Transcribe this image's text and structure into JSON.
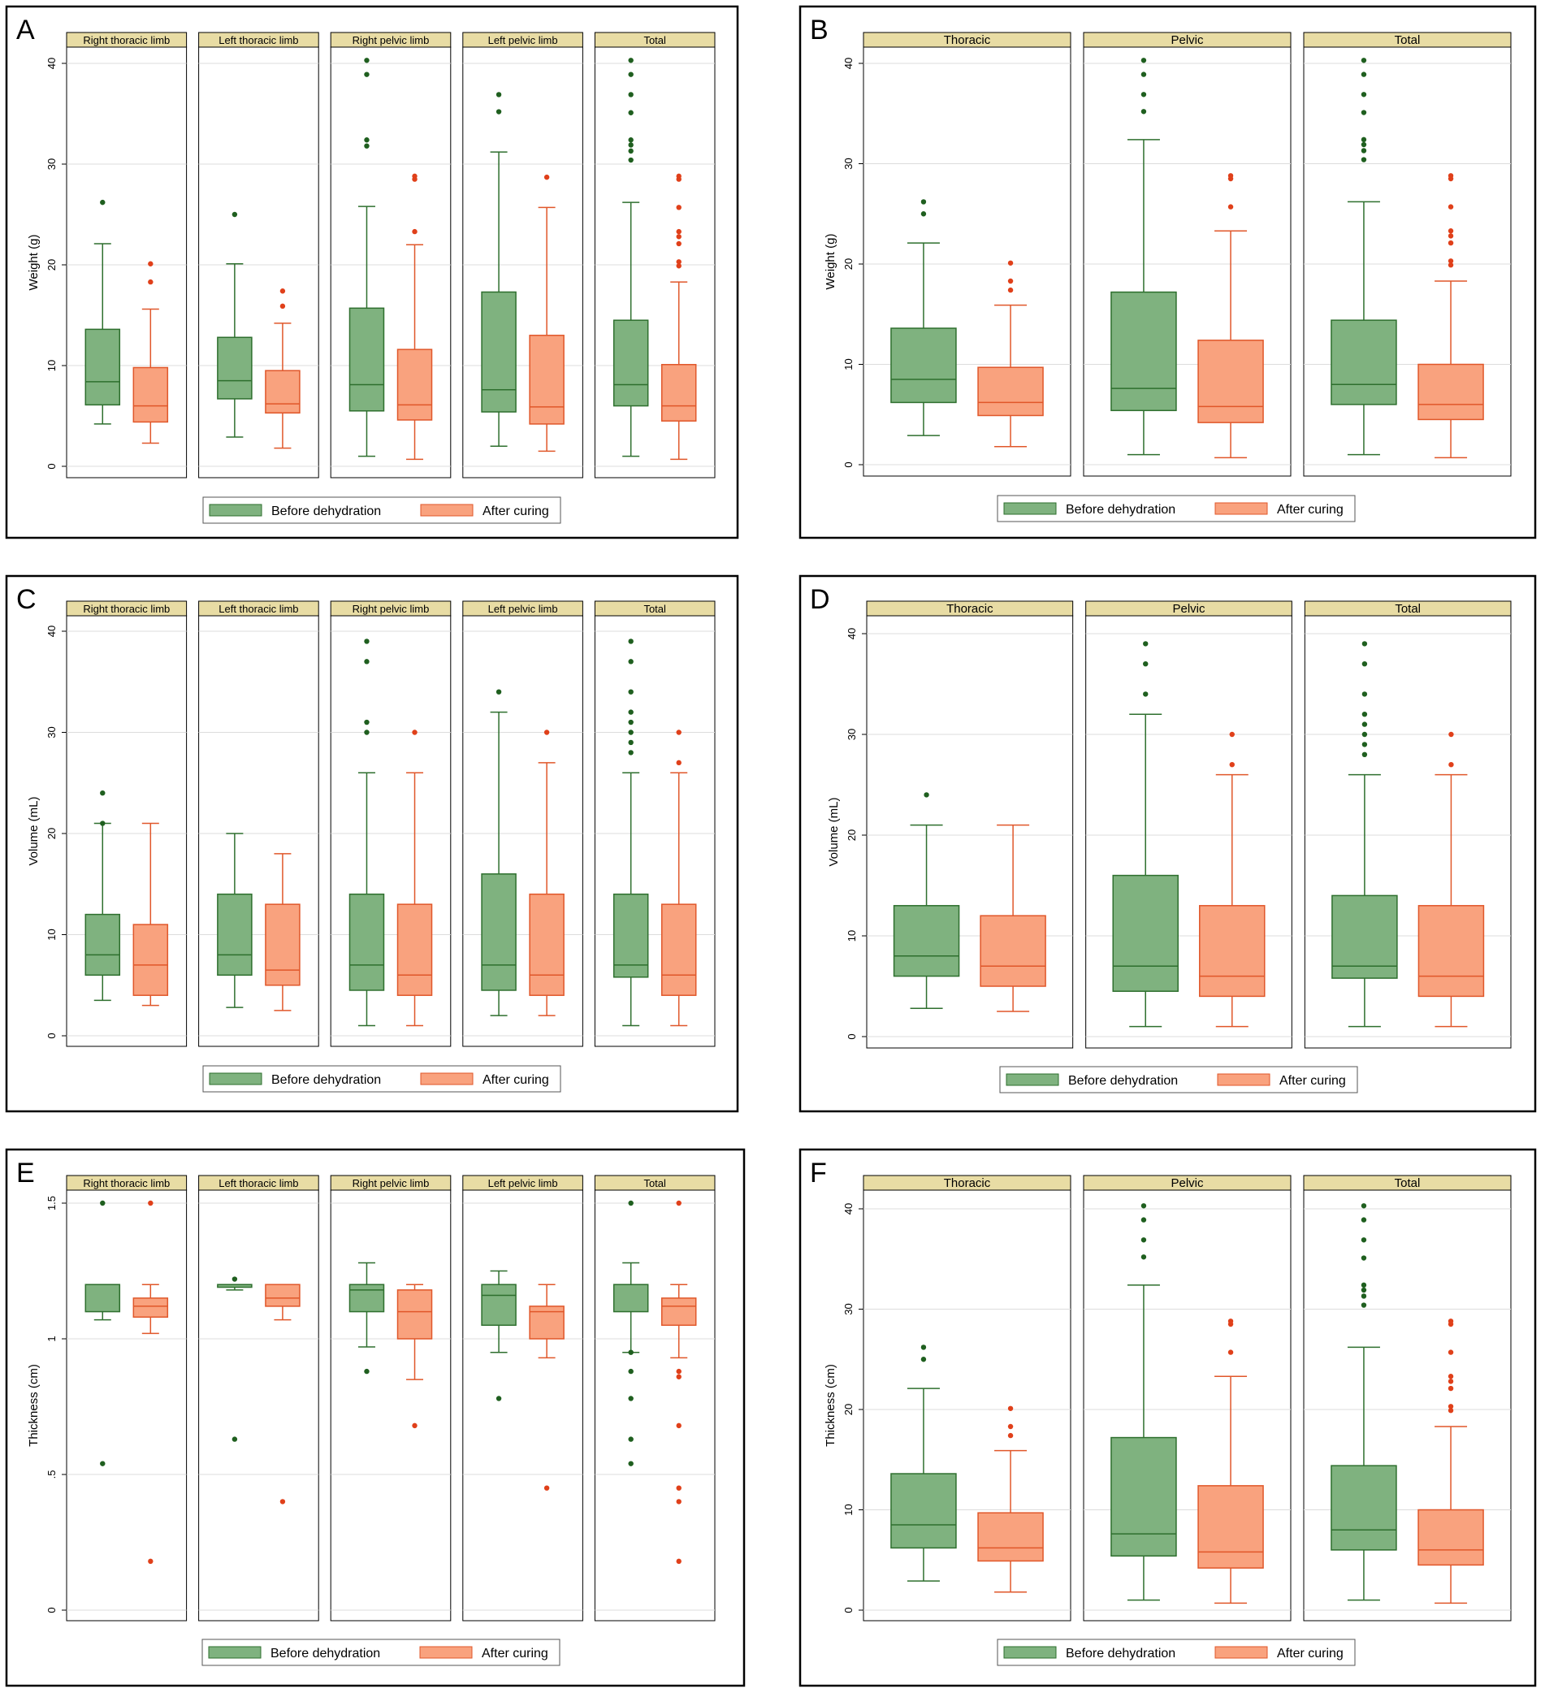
{
  "colors": {
    "before_fill": "#7fb27f",
    "before_stroke": "#2e6f2e",
    "before_outlier": "#1f5f1f",
    "after_fill": "#f9a27e",
    "after_stroke": "#e0572a",
    "after_outlier": "#e0401a",
    "strip": "#e8dca4",
    "grid": "#dcdcdc"
  },
  "legend": {
    "before": "Before dehydration",
    "after": "After curing"
  },
  "chart_data": [
    {
      "id": "A",
      "type": "box",
      "title": "A",
      "ylabel": "Weight (g)",
      "ylim": [
        0,
        40
      ],
      "yticks": [
        0,
        10,
        20,
        30,
        40
      ],
      "ytick_labels": [
        "0",
        "10",
        "20",
        "30",
        "40"
      ],
      "panels": [
        {
          "label": "Right thoracic limb",
          "before": {
            "min": 4.2,
            "q1": 6.1,
            "median": 8.4,
            "q3": 13.6,
            "max": 22.1,
            "outliers": [
              26.2
            ]
          },
          "after": {
            "min": 2.3,
            "q1": 4.4,
            "median": 6.0,
            "q3": 9.8,
            "max": 15.6,
            "outliers": [
              18.3,
              20.1
            ]
          }
        },
        {
          "label": "Left thoracic limb",
          "before": {
            "min": 2.9,
            "q1": 6.7,
            "median": 8.5,
            "q3": 12.8,
            "max": 20.1,
            "outliers": [
              25.0
            ]
          },
          "after": {
            "min": 1.8,
            "q1": 5.3,
            "median": 6.2,
            "q3": 9.5,
            "max": 14.2,
            "outliers": [
              15.9,
              17.4
            ]
          }
        },
        {
          "label": "Right pelvic limb",
          "before": {
            "min": 1.0,
            "q1": 5.5,
            "median": 8.1,
            "q3": 15.7,
            "max": 25.8,
            "outliers": [
              31.8,
              32.4,
              38.9,
              40.3
            ]
          },
          "after": {
            "min": 0.7,
            "q1": 4.6,
            "median": 6.1,
            "q3": 11.6,
            "max": 22.0,
            "outliers": [
              23.3,
              28.5,
              28.8
            ]
          }
        },
        {
          "label": "Left pelvic limb",
          "before": {
            "min": 2.0,
            "q1": 5.4,
            "median": 7.6,
            "q3": 17.3,
            "max": 31.2,
            "outliers": [
              35.2,
              36.9
            ]
          },
          "after": {
            "min": 1.5,
            "q1": 4.2,
            "median": 5.9,
            "q3": 13.0,
            "max": 25.7,
            "outliers": [
              28.7
            ]
          }
        },
        {
          "label": "Total",
          "before": {
            "min": 1.0,
            "q1": 6.0,
            "median": 8.1,
            "q3": 14.5,
            "max": 26.2,
            "outliers": [
              30.4,
              31.3,
              31.9,
              32.4,
              35.1,
              36.9,
              38.9,
              40.3
            ]
          },
          "after": {
            "min": 0.7,
            "q1": 4.5,
            "median": 6.0,
            "q3": 10.1,
            "max": 18.3,
            "outliers": [
              19.9,
              20.3,
              22.1,
              22.8,
              23.3,
              25.7,
              28.5,
              28.8
            ]
          }
        }
      ]
    },
    {
      "id": "B",
      "type": "box",
      "title": "B",
      "ylabel": "Weight (g)",
      "ylim": [
        0,
        40
      ],
      "yticks": [
        0,
        10,
        20,
        30,
        40
      ],
      "ytick_labels": [
        "0",
        "10",
        "20",
        "30",
        "40"
      ],
      "panels": [
        {
          "label": "Thoracic",
          "before": {
            "min": 2.9,
            "q1": 6.2,
            "median": 8.5,
            "q3": 13.6,
            "max": 22.1,
            "outliers": [
              25.0,
              26.2
            ]
          },
          "after": {
            "min": 1.8,
            "q1": 4.9,
            "median": 6.2,
            "q3": 9.7,
            "max": 15.9,
            "outliers": [
              17.4,
              18.3,
              20.1
            ]
          }
        },
        {
          "label": "Pelvic",
          "before": {
            "min": 1.0,
            "q1": 5.4,
            "median": 7.6,
            "q3": 17.2,
            "max": 32.4,
            "outliers": [
              35.2,
              36.9,
              38.9,
              40.3
            ]
          },
          "after": {
            "min": 0.7,
            "q1": 4.2,
            "median": 5.8,
            "q3": 12.4,
            "max": 23.3,
            "outliers": [
              25.7,
              28.5,
              28.8
            ]
          }
        },
        {
          "label": "Total",
          "before": {
            "min": 1.0,
            "q1": 6.0,
            "median": 8.0,
            "q3": 14.4,
            "max": 26.2,
            "outliers": [
              30.4,
              31.3,
              31.9,
              32.4,
              35.1,
              36.9,
              38.9,
              40.3
            ]
          },
          "after": {
            "min": 0.7,
            "q1": 4.5,
            "median": 6.0,
            "q3": 10.0,
            "max": 18.3,
            "outliers": [
              19.9,
              20.3,
              22.1,
              22.8,
              23.3,
              25.7,
              28.5,
              28.8
            ]
          }
        }
      ]
    },
    {
      "id": "C",
      "type": "box",
      "title": "C",
      "ylabel": "Volume (mL)",
      "ylim": [
        0,
        40
      ],
      "yticks": [
        0,
        10,
        20,
        30,
        40
      ],
      "ytick_labels": [
        "0",
        "10",
        "20",
        "30",
        "40"
      ],
      "panels": [
        {
          "label": "Right thoracic limb",
          "before": {
            "min": 3.5,
            "q1": 6.0,
            "median": 8.0,
            "q3": 12.0,
            "max": 21.0,
            "outliers": [
              21.0,
              24.0
            ]
          },
          "after": {
            "min": 3.0,
            "q1": 4.0,
            "median": 7.0,
            "q3": 11.0,
            "max": 21.0,
            "outliers": []
          }
        },
        {
          "label": "Left thoracic limb",
          "before": {
            "min": 2.8,
            "q1": 6.0,
            "median": 8.0,
            "q3": 14.0,
            "max": 20.0,
            "outliers": []
          },
          "after": {
            "min": 2.5,
            "q1": 5.0,
            "median": 6.5,
            "q3": 13.0,
            "max": 18.0,
            "outliers": []
          }
        },
        {
          "label": "Right pelvic limb",
          "before": {
            "min": 1.0,
            "q1": 4.5,
            "median": 7.0,
            "q3": 14.0,
            "max": 26.0,
            "outliers": [
              30.0,
              31.0,
              37.0,
              39.0
            ]
          },
          "after": {
            "min": 1.0,
            "q1": 4.0,
            "median": 6.0,
            "q3": 13.0,
            "max": 26.0,
            "outliers": [
              30.0
            ]
          }
        },
        {
          "label": "Left pelvic limb",
          "before": {
            "min": 2.0,
            "q1": 4.5,
            "median": 7.0,
            "q3": 16.0,
            "max": 32.0,
            "outliers": [
              34.0
            ]
          },
          "after": {
            "min": 2.0,
            "q1": 4.0,
            "median": 6.0,
            "q3": 14.0,
            "max": 27.0,
            "outliers": [
              30.0
            ]
          }
        },
        {
          "label": "Total",
          "before": {
            "min": 1.0,
            "q1": 5.8,
            "median": 7.0,
            "q3": 14.0,
            "max": 26.0,
            "outliers": [
              28.0,
              29.0,
              30.0,
              31.0,
              32.0,
              34.0,
              37.0,
              39.0
            ]
          },
          "after": {
            "min": 1.0,
            "q1": 4.0,
            "median": 6.0,
            "q3": 13.0,
            "max": 26.0,
            "outliers": [
              27.0,
              30.0
            ]
          }
        }
      ]
    },
    {
      "id": "D",
      "type": "box",
      "title": "D",
      "ylabel": "Volume (mL)",
      "ylim": [
        0,
        40
      ],
      "yticks": [
        0,
        10,
        20,
        30,
        40
      ],
      "ytick_labels": [
        "0",
        "10",
        "20",
        "30",
        "40"
      ],
      "panels": [
        {
          "label": "Thoracic",
          "before": {
            "min": 2.8,
            "q1": 6.0,
            "median": 8.0,
            "q3": 13.0,
            "max": 21.0,
            "outliers": [
              24.0
            ]
          },
          "after": {
            "min": 2.5,
            "q1": 5.0,
            "median": 7.0,
            "q3": 12.0,
            "max": 21.0,
            "outliers": []
          }
        },
        {
          "label": "Pelvic",
          "before": {
            "min": 1.0,
            "q1": 4.5,
            "median": 7.0,
            "q3": 16.0,
            "max": 32.0,
            "outliers": [
              34.0,
              37.0,
              39.0
            ]
          },
          "after": {
            "min": 1.0,
            "q1": 4.0,
            "median": 6.0,
            "q3": 13.0,
            "max": 26.0,
            "outliers": [
              27.0,
              30.0
            ]
          }
        },
        {
          "label": "Total",
          "before": {
            "min": 1.0,
            "q1": 5.8,
            "median": 7.0,
            "q3": 14.0,
            "max": 26.0,
            "outliers": [
              28.0,
              29.0,
              30.0,
              31.0,
              32.0,
              34.0,
              37.0,
              39.0
            ]
          },
          "after": {
            "min": 1.0,
            "q1": 4.0,
            "median": 6.0,
            "q3": 13.0,
            "max": 26.0,
            "outliers": [
              27.0,
              30.0
            ]
          }
        }
      ]
    },
    {
      "id": "E",
      "type": "box",
      "title": "E",
      "ylabel": "Thickness (cm)",
      "ylim": [
        0,
        1.5
      ],
      "yticks": [
        0,
        0.5,
        1,
        1.5
      ],
      "ytick_labels": [
        "0",
        ".5",
        "1",
        "1.5"
      ],
      "panels": [
        {
          "label": "Right thoracic limb",
          "before": {
            "min": 1.07,
            "q1": 1.1,
            "median": 1.2,
            "q3": 1.2,
            "max": 1.2,
            "outliers": [
              1.5,
              0.54
            ]
          },
          "after": {
            "min": 1.02,
            "q1": 1.08,
            "median": 1.12,
            "q3": 1.15,
            "max": 1.2,
            "outliers": [
              1.5,
              0.18
            ]
          }
        },
        {
          "label": "Left thoracic limb",
          "before": {
            "min": 1.18,
            "q1": 1.19,
            "median": 1.2,
            "q3": 1.2,
            "max": 1.2,
            "outliers": [
              1.22,
              0.63
            ]
          },
          "after": {
            "min": 1.07,
            "q1": 1.12,
            "median": 1.15,
            "q3": 1.2,
            "max": 1.2,
            "outliers": [
              0.4
            ]
          }
        },
        {
          "label": "Right pelvic limb",
          "before": {
            "min": 0.97,
            "q1": 1.1,
            "median": 1.18,
            "q3": 1.2,
            "max": 1.28,
            "outliers": [
              0.88
            ]
          },
          "after": {
            "min": 0.85,
            "q1": 1.0,
            "median": 1.1,
            "q3": 1.18,
            "max": 1.2,
            "outliers": [
              0.68
            ]
          }
        },
        {
          "label": "Left pelvic limb",
          "before": {
            "min": 0.95,
            "q1": 1.05,
            "median": 1.16,
            "q3": 1.2,
            "max": 1.25,
            "outliers": [
              0.78
            ]
          },
          "after": {
            "min": 0.93,
            "q1": 1.0,
            "median": 1.1,
            "q3": 1.12,
            "max": 1.2,
            "outliers": [
              0.45
            ]
          }
        },
        {
          "label": "Total",
          "before": {
            "min": 0.95,
            "q1": 1.1,
            "median": 1.2,
            "q3": 1.2,
            "max": 1.28,
            "outliers": [
              1.5,
              0.95,
              0.88,
              0.78,
              0.63,
              0.54
            ]
          },
          "after": {
            "min": 0.93,
            "q1": 1.05,
            "median": 1.12,
            "q3": 1.15,
            "max": 1.2,
            "outliers": [
              1.5,
              0.88,
              0.86,
              0.68,
              0.45,
              0.4,
              0.18
            ]
          }
        }
      ]
    },
    {
      "id": "F",
      "type": "box",
      "title": "F",
      "ylabel": "Thickness (cm)",
      "ylim": [
        0,
        40
      ],
      "yticks": [
        0,
        10,
        20,
        30,
        40
      ],
      "ytick_labels": [
        "0",
        "10",
        "20",
        "30",
        "40"
      ],
      "panels": [
        {
          "label": "Thoracic",
          "before": {
            "min": 2.9,
            "q1": 6.2,
            "median": 8.5,
            "q3": 13.6,
            "max": 22.1,
            "outliers": [
              25.0,
              26.2
            ]
          },
          "after": {
            "min": 1.8,
            "q1": 4.9,
            "median": 6.2,
            "q3": 9.7,
            "max": 15.9,
            "outliers": [
              17.4,
              18.3,
              20.1
            ]
          }
        },
        {
          "label": "Pelvic",
          "before": {
            "min": 1.0,
            "q1": 5.4,
            "median": 7.6,
            "q3": 17.2,
            "max": 32.4,
            "outliers": [
              35.2,
              36.9,
              38.9,
              40.3
            ]
          },
          "after": {
            "min": 0.7,
            "q1": 4.2,
            "median": 5.8,
            "q3": 12.4,
            "max": 23.3,
            "outliers": [
              25.7,
              28.5,
              28.8
            ]
          }
        },
        {
          "label": "Total",
          "before": {
            "min": 1.0,
            "q1": 6.0,
            "median": 8.0,
            "q3": 14.4,
            "max": 26.2,
            "outliers": [
              30.4,
              31.3,
              31.9,
              32.4,
              35.1,
              36.9,
              38.9,
              40.3
            ]
          },
          "after": {
            "min": 0.7,
            "q1": 4.5,
            "median": 6.0,
            "q3": 10.0,
            "max": 18.3,
            "outliers": [
              19.9,
              20.3,
              22.1,
              22.8,
              23.3,
              25.7,
              28.5,
              28.8
            ]
          }
        }
      ]
    }
  ]
}
